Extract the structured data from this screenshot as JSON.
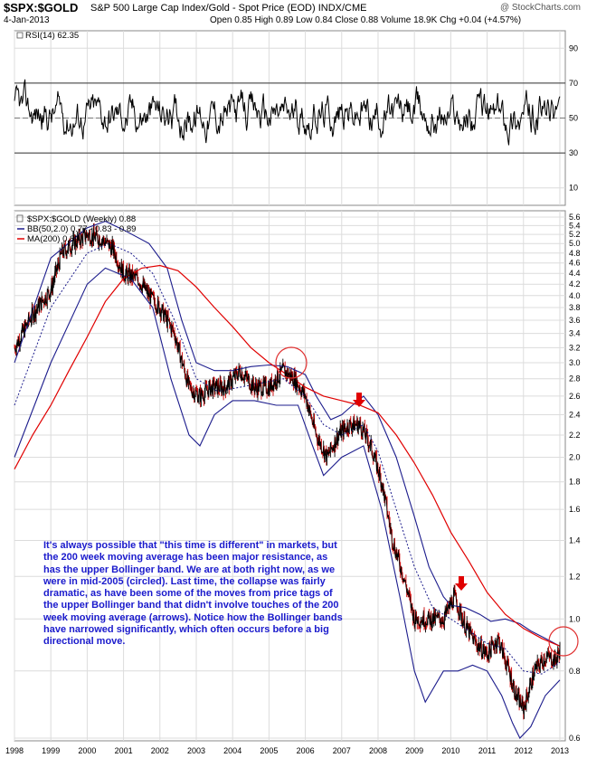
{
  "header": {
    "symbol": "$SPX:$GOLD",
    "description": "S&P 500 Large Cap Index/Gold - Spot Price (EOD)",
    "exchange": "INDX/CME",
    "date": "4-Jan-2013",
    "quote": "Open 0.85  High 0.89  Low 0.84  Close 0.88  Volume 18.9K  Chg +0.04 (+4.57%)",
    "copyright": "@ StockCharts.com"
  },
  "note": "It's always possible that \"this time is different\" in markets, but the 200 week moving average has been major resistance, as has the upper Bollinger band. We are at both right now, as we were in mid-2005 (circled). Last time, the collapse was fairly dramatic, as have been some of the moves from price tags of the upper Bollinger band that didn't involve touches of the 200 week moving average (arrows). Notice how the Bollinger bands have narrowed significantly, which often occurs before a big directional move.",
  "colors": {
    "price": "#000000",
    "down_bar": "#cc0000",
    "bollinger": "#1c1c8c",
    "ma200": "#e00000",
    "annotation_circle": "#e03030",
    "arrow": "#e00000",
    "note_text": "#1a1acc",
    "grid": "#dcdcdc"
  },
  "chart_data": [
    {
      "type": "line",
      "panel": "indicator",
      "legend": [
        "RSI(14) 62.35"
      ],
      "series": [
        {
          "name": "RSI(14)",
          "last": 62.35
        }
      ],
      "yticks": [
        10,
        30,
        50,
        70,
        90
      ],
      "ylim": [
        0,
        100
      ],
      "reference_lines": [
        30,
        50,
        70
      ]
    },
    {
      "type": "line",
      "panel": "price",
      "yscale": "log",
      "legend": [
        "$SPX:$GOLD (Weekly) 0.88",
        "BB(50,2.0) 0.77 - 0.83 - 0.89",
        "MA(200) 0.89"
      ],
      "yticks": [
        0.6,
        0.8,
        1.0,
        1.2,
        1.4,
        1.6,
        1.8,
        2.0,
        2.2,
        2.4,
        2.6,
        2.8,
        3.0,
        3.2,
        3.4,
        3.6,
        3.8,
        4.0,
        4.2,
        4.4,
        4.6,
        4.8,
        5.0,
        5.2,
        5.4,
        5.6
      ],
      "xticks": [
        "1998",
        "1999",
        "2000",
        "2001",
        "2002",
        "2003",
        "2004",
        "2005",
        "2006",
        "2007",
        "2008",
        "2009",
        "2010",
        "2011",
        "2012",
        "2013"
      ],
      "price": {
        "x": [
          1998.0,
          1998.5,
          1999.0,
          1999.3,
          1999.6,
          2000.0,
          2000.4,
          2000.7,
          2001.0,
          2001.4,
          2001.7,
          2002.0,
          2002.4,
          2002.8,
          2003.1,
          2003.4,
          2003.8,
          2004.2,
          2004.6,
          2005.0,
          2005.4,
          2005.7,
          2006.0,
          2006.3,
          2006.6,
          2006.9,
          2007.2,
          2007.5,
          2007.8,
          2008.1,
          2008.4,
          2008.7,
          2009.0,
          2009.2,
          2009.5,
          2009.8,
          2010.1,
          2010.4,
          2010.7,
          2011.0,
          2011.3,
          2011.6,
          2011.8,
          2012.0,
          2012.3,
          2012.6,
          2012.9,
          2013.0
        ],
        "y": [
          3.2,
          3.7,
          4.1,
          4.8,
          5.0,
          5.2,
          5.1,
          4.9,
          4.4,
          4.3,
          4.0,
          3.8,
          3.4,
          2.7,
          2.6,
          2.7,
          2.7,
          2.9,
          2.7,
          2.7,
          2.9,
          2.8,
          2.6,
          2.2,
          2.0,
          2.2,
          2.3,
          2.3,
          2.1,
          1.8,
          1.4,
          1.2,
          1.0,
          1.0,
          1.0,
          1.0,
          1.1,
          0.97,
          0.9,
          0.86,
          0.92,
          0.8,
          0.72,
          0.68,
          0.8,
          0.85,
          0.84,
          0.88
        ]
      },
      "bollinger_upper": {
        "x": [
          1998.0,
          1999.0,
          2000.0,
          2000.5,
          2001.0,
          2001.7,
          2002.2,
          2002.6,
          2003.0,
          2003.5,
          2004.0,
          2004.5,
          2005.0,
          2005.5,
          2006.0,
          2006.3,
          2006.7,
          2007.0,
          2007.3,
          2007.6,
          2008.0,
          2008.5,
          2009.0,
          2009.4,
          2009.8,
          2010.0,
          2010.4,
          2010.8,
          2011.1,
          2011.5,
          2011.9,
          2012.2,
          2012.6,
          2013.0
        ],
        "y": [
          3.0,
          4.7,
          5.35,
          5.5,
          5.3,
          5.0,
          4.5,
          3.6,
          3.0,
          2.9,
          2.9,
          2.95,
          2.97,
          2.95,
          2.85,
          2.6,
          2.35,
          2.4,
          2.5,
          2.6,
          2.4,
          2.0,
          1.55,
          1.25,
          1.1,
          1.06,
          1.05,
          1.02,
          0.99,
          1.0,
          0.98,
          0.95,
          0.92,
          0.89
        ]
      },
      "bollinger_mid": {
        "x": [
          1998.0,
          1999.0,
          2000.0,
          2000.6,
          2001.2,
          2001.8,
          2002.4,
          2003.0,
          2003.6,
          2004.2,
          2004.8,
          2005.4,
          2006.0,
          2006.5,
          2007.0,
          2007.6,
          2008.0,
          2008.5,
          2009.0,
          2009.5,
          2010.0,
          2010.5,
          2011.0,
          2011.5,
          2012.0,
          2012.5,
          2013.0
        ],
        "y": [
          2.5,
          3.8,
          4.8,
          5.0,
          4.8,
          4.4,
          3.6,
          2.8,
          2.65,
          2.7,
          2.75,
          2.8,
          2.6,
          2.3,
          2.2,
          2.3,
          2.05,
          1.6,
          1.25,
          1.05,
          1.0,
          0.95,
          0.9,
          0.88,
          0.8,
          0.79,
          0.83
        ]
      },
      "bollinger_lower": {
        "x": [
          1998.0,
          1999.0,
          2000.0,
          2000.5,
          2001.2,
          2001.8,
          2002.3,
          2002.8,
          2003.1,
          2003.5,
          2004.0,
          2004.6,
          2005.2,
          2005.8,
          2006.2,
          2006.5,
          2007.0,
          2007.6,
          2008.1,
          2008.6,
          2009.0,
          2009.3,
          2009.8,
          2010.2,
          2010.6,
          2011.0,
          2011.4,
          2011.7,
          2011.9,
          2012.2,
          2012.6,
          2013.0
        ],
        "y": [
          2.0,
          3.0,
          4.2,
          4.5,
          4.3,
          3.8,
          2.8,
          2.2,
          2.1,
          2.4,
          2.55,
          2.55,
          2.5,
          2.5,
          2.1,
          1.85,
          2.0,
          2.1,
          1.6,
          1.1,
          0.8,
          0.7,
          0.8,
          0.8,
          0.82,
          0.8,
          0.72,
          0.64,
          0.6,
          0.63,
          0.72,
          0.77
        ]
      },
      "ma200": {
        "x": [
          1998.0,
          1998.5,
          1999.0,
          1999.5,
          2000.0,
          2000.5,
          2001.0,
          2001.5,
          2002.0,
          2002.5,
          2003.0,
          2003.5,
          2004.0,
          2004.5,
          2005.0,
          2005.5,
          2006.0,
          2006.5,
          2007.0,
          2007.5,
          2008.0,
          2008.5,
          2009.0,
          2009.5,
          2010.0,
          2010.5,
          2011.0,
          2011.5,
          2012.0,
          2012.5,
          2013.0
        ],
        "y": [
          1.9,
          2.2,
          2.5,
          2.9,
          3.35,
          3.9,
          4.3,
          4.5,
          4.55,
          4.45,
          4.15,
          3.8,
          3.5,
          3.2,
          3.0,
          2.85,
          2.7,
          2.6,
          2.55,
          2.5,
          2.42,
          2.2,
          1.95,
          1.7,
          1.45,
          1.28,
          1.12,
          1.02,
          0.96,
          0.92,
          0.89
        ]
      }
    }
  ]
}
